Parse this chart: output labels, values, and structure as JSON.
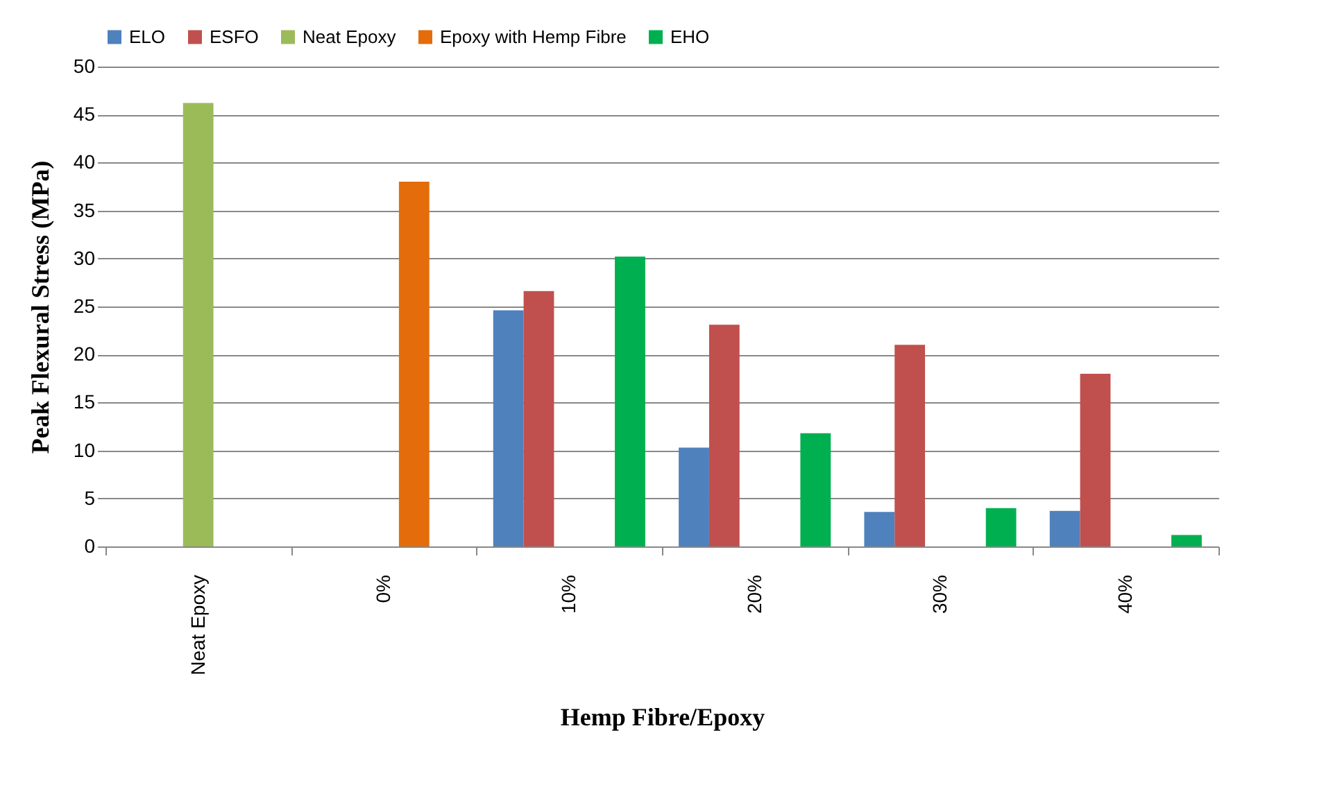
{
  "chart_data": {
    "type": "bar",
    "xlabel": "Hemp Fibre/Epoxy",
    "ylabel": "Peak Flexural Stress (MPa)",
    "categories": [
      "Neat Epoxy",
      "0%",
      "10%",
      "20%",
      "30%",
      "40%"
    ],
    "series": [
      {
        "name": "ELO",
        "color": "#4f81bd",
        "values": [
          null,
          null,
          24.6,
          10.3,
          3.6,
          3.7
        ]
      },
      {
        "name": "ESFO",
        "color": "#c0504d",
        "values": [
          null,
          null,
          26.6,
          23.1,
          21.0,
          18.0
        ]
      },
      {
        "name": "Neat Epoxy",
        "color": "#9bbb59",
        "values": [
          46.2,
          null,
          null,
          null,
          null,
          null
        ]
      },
      {
        "name": "Epoxy with Hemp Fibre",
        "color": "#e46c0a",
        "values": [
          null,
          38.0,
          null,
          null,
          null,
          null
        ]
      },
      {
        "name": "EHO",
        "color": "#00b050",
        "values": [
          null,
          null,
          30.2,
          11.8,
          4.0,
          1.2
        ]
      }
    ],
    "ylim": [
      0,
      50
    ],
    "yticks": [
      0,
      5,
      10,
      15,
      20,
      25,
      30,
      35,
      40,
      45,
      50
    ],
    "grid": "y",
    "legend": "top"
  }
}
